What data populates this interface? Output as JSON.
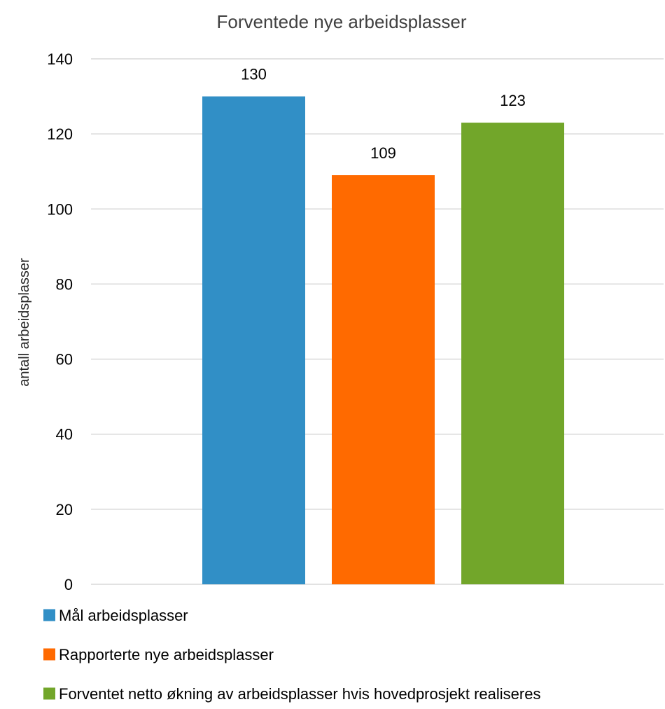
{
  "chart_data": {
    "type": "bar",
    "title": "Forventede nye arbeidsplasser",
    "xlabel": "",
    "ylabel": "antall arbeidsplasser",
    "ylim": [
      0,
      140
    ],
    "y_ticks": [
      "0",
      "20",
      "40",
      "60",
      "80",
      "100",
      "120",
      "140"
    ],
    "grid": true,
    "legend_position": "bottom",
    "categories": [
      ""
    ],
    "series": [
      {
        "name": "Mål arbeidsplasser",
        "values": [
          130
        ],
        "color": "#318fc6",
        "data_label": "130"
      },
      {
        "name": "Rapporterte nye arbeidsplasser",
        "values": [
          109
        ],
        "color": "#ff6a00",
        "data_label": "109"
      },
      {
        "name": "Forventet netto økning av arbeidsplasser hvis hovedprosjekt realiseres",
        "values": [
          123
        ],
        "color": "#72a62a",
        "data_label": "123"
      }
    ]
  }
}
